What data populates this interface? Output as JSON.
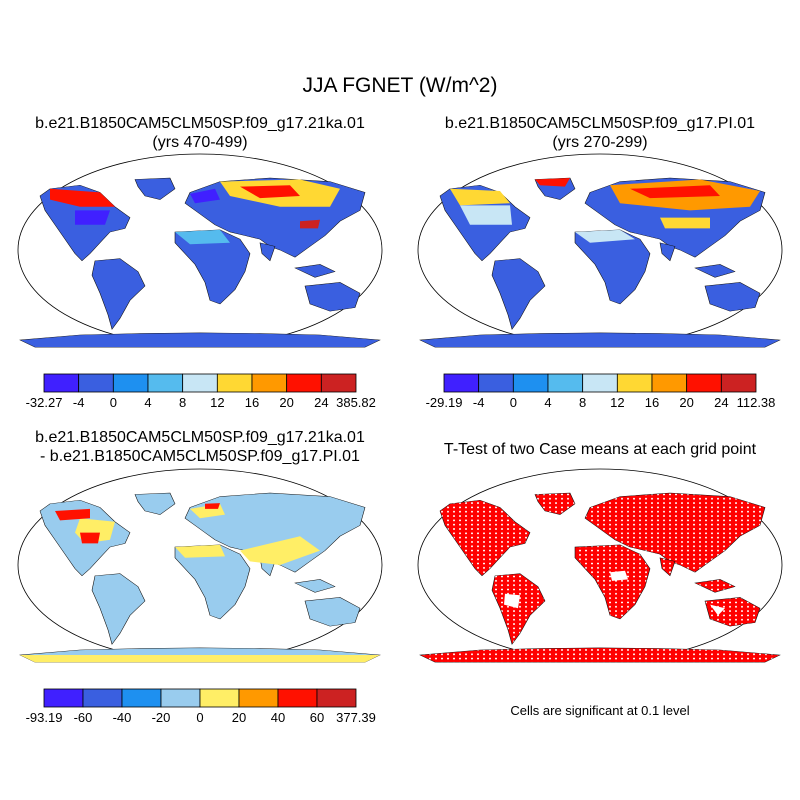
{
  "figure": {
    "title": "JJA FGNET (W/m^2)"
  },
  "panels": [
    {
      "id": "case",
      "title_line1": "b.e21.B1850CAM5CLM50SP.f09_g17.21ka.01",
      "title_line2": "(yrs 470-499)",
      "colorbar": {
        "labels": [
          "-32.27",
          "-4",
          "0",
          "4",
          "8",
          "12",
          "16",
          "20",
          "24",
          "385.82"
        ],
        "colors": [
          "#4020ff",
          "#3a5fe0",
          "#1e90f0",
          "#55bbee",
          "#c8e6f5",
          "#ffd833",
          "#ff9900",
          "#ff1100",
          "#cc2222"
        ]
      }
    },
    {
      "id": "reference",
      "title_line1": "b.e21.B1850CAM5CLM50SP.f09_g17.PI.01",
      "title_line2": "(yrs 270-299)",
      "colorbar": {
        "labels": [
          "-29.19",
          "-4",
          "0",
          "4",
          "8",
          "12",
          "16",
          "20",
          "24",
          "112.38"
        ],
        "colors": [
          "#4020ff",
          "#3a5fe0",
          "#1e90f0",
          "#55bbee",
          "#c8e6f5",
          "#ffd833",
          "#ff9900",
          "#ff1100",
          "#cc2222"
        ]
      }
    },
    {
      "id": "difference",
      "title_line1": "b.e21.B1850CAM5CLM50SP.f09_g17.21ka.01",
      "title_line2": "- b.e21.B1850CAM5CLM50SP.f09_g17.PI.01",
      "colorbar": {
        "labels": [
          "-93.19",
          "-60",
          "-40",
          "-20",
          "0",
          "20",
          "40",
          "60",
          "377.39"
        ],
        "colors": [
          "#4020ff",
          "#3a5fe0",
          "#1e90f0",
          "#99ccee",
          "#ffee66",
          "#ff9900",
          "#ff1100",
          "#cc2222"
        ]
      }
    },
    {
      "id": "ttest",
      "title_line1": "T-Test of two Case means at each grid point",
      "note": "Cells are significant at 0.1 level",
      "color": "#ff0000"
    }
  ]
}
